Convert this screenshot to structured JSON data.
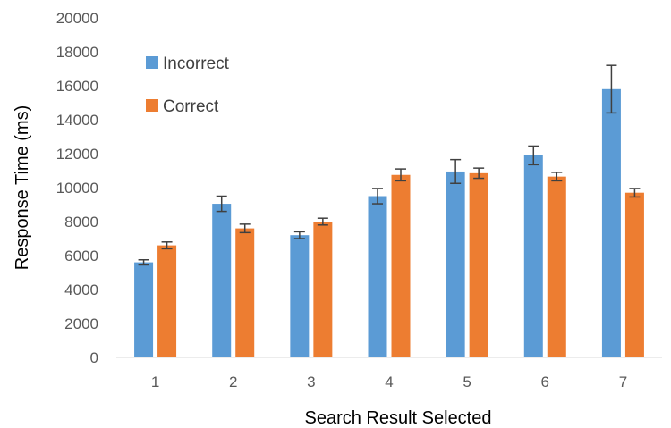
{
  "chart_data": {
    "type": "bar",
    "categories": [
      "1",
      "2",
      "3",
      "4",
      "5",
      "6",
      "7"
    ],
    "series": [
      {
        "name": "Incorrect",
        "color": "#5B9BD5",
        "values": [
          5600,
          9050,
          7200,
          9500,
          10950,
          11900,
          15800
        ],
        "error": [
          150,
          450,
          200,
          450,
          700,
          550,
          1400
        ]
      },
      {
        "name": "Correct",
        "color": "#ED7D31",
        "values": [
          6600,
          7600,
          8000,
          10750,
          10850,
          10650,
          9700
        ],
        "error": [
          200,
          250,
          200,
          350,
          300,
          250,
          250
        ]
      }
    ],
    "xlabel": "Search Result Selected",
    "ylabel": "Response Time (ms)",
    "ylim": [
      0,
      20000
    ],
    "yticks": [
      "0",
      "2000",
      "4000",
      "6000",
      "8000",
      "10000",
      "12000",
      "14000",
      "16000",
      "18000",
      "20000"
    ],
    "grid": false,
    "legend_position": "top-left",
    "error_bar_color": "#404040"
  }
}
